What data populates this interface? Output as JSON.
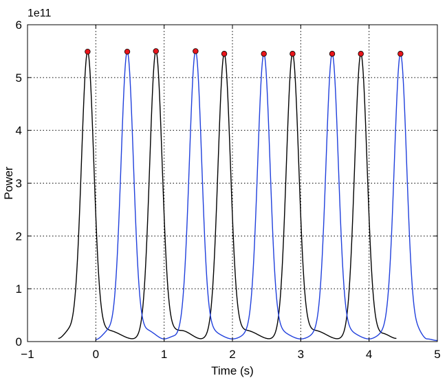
{
  "chart_data": {
    "type": "line",
    "title": "",
    "xlabel": "Time (s)",
    "ylabel": "Power",
    "y_exponent_label": "1e11",
    "xlim": [
      -1,
      5
    ],
    "ylim": [
      0,
      600000000000.0
    ],
    "x_ticks": [
      -1,
      0,
      1,
      2,
      3,
      4,
      5
    ],
    "x_tick_labels": [
      "−1",
      "0",
      "1",
      "2",
      "3",
      "4",
      "5"
    ],
    "y_ticks": [
      0,
      100000000000.0,
      200000000000.0,
      300000000000.0,
      400000000000.0,
      500000000000.0,
      600000000000.0
    ],
    "y_tick_labels": [
      "0",
      "1",
      "2",
      "3",
      "4",
      "5",
      "6"
    ],
    "grid": true,
    "grid_style": "dotted",
    "pulse_width_s": 0.09,
    "series": [
      {
        "color": "#000000",
        "x_range": [
          -0.55,
          4.4
        ],
        "baseline": [
          {
            "x": -0.55,
            "y": 6000000000.0
          },
          {
            "x": -0.38,
            "y": 21000000000.0
          },
          {
            "x": 0.18,
            "y": 21000000000.0
          },
          {
            "x": 0.55,
            "y": 5000000000.0
          },
          {
            "x": 0.95,
            "y": 22000000000.0
          },
          {
            "x": 1.25,
            "y": 21000000000.0
          },
          {
            "x": 1.55,
            "y": 5000000000.0
          },
          {
            "x": 1.95,
            "y": 22000000000.0
          },
          {
            "x": 2.2,
            "y": 21000000000.0
          },
          {
            "x": 2.55,
            "y": 5000000000.0
          },
          {
            "x": 2.95,
            "y": 22000000000.0
          },
          {
            "x": 3.2,
            "y": 21000000000.0
          },
          {
            "x": 3.55,
            "y": 5000000000.0
          },
          {
            "x": 3.95,
            "y": 22000000000.0
          },
          {
            "x": 4.2,
            "y": 15000000000.0
          },
          {
            "x": 4.4,
            "y": 6000000000.0
          }
        ],
        "peaks": [
          {
            "x": -0.12,
            "y": 549000000000.0
          },
          {
            "x": 0.88,
            "y": 550000000000.0
          },
          {
            "x": 1.88,
            "y": 545000000000.0
          },
          {
            "x": 2.88,
            "y": 545000000000.0
          },
          {
            "x": 3.88,
            "y": 545000000000.0
          }
        ]
      },
      {
        "color": "#1f3fdc",
        "x_range": [
          0.0,
          5.0
        ],
        "baseline": [
          {
            "x": 0.0,
            "y": 4000000000.0
          },
          {
            "x": 0.2,
            "y": 21000000000.0
          },
          {
            "x": 0.75,
            "y": 21000000000.0
          },
          {
            "x": 1.0,
            "y": 5000000000.0
          },
          {
            "x": 1.15,
            "y": 10000000000.0
          },
          {
            "x": 1.35,
            "y": 21000000000.0
          },
          {
            "x": 1.65,
            "y": 21000000000.0
          },
          {
            "x": 2.0,
            "y": 5000000000.0
          },
          {
            "x": 2.35,
            "y": 21000000000.0
          },
          {
            "x": 2.65,
            "y": 21000000000.0
          },
          {
            "x": 3.0,
            "y": 5000000000.0
          },
          {
            "x": 3.35,
            "y": 21000000000.0
          },
          {
            "x": 3.65,
            "y": 21000000000.0
          },
          {
            "x": 4.0,
            "y": 5000000000.0
          },
          {
            "x": 4.3,
            "y": 21000000000.0
          },
          {
            "x": 4.7,
            "y": 21000000000.0
          },
          {
            "x": 4.85,
            "y": 5000000000.0
          },
          {
            "x": 5.0,
            "y": 2000000000.0
          }
        ],
        "peaks": [
          {
            "x": 0.46,
            "y": 549000000000.0
          },
          {
            "x": 1.46,
            "y": 550000000000.0
          },
          {
            "x": 2.46,
            "y": 545000000000.0
          },
          {
            "x": 3.46,
            "y": 545000000000.0
          },
          {
            "x": 4.46,
            "y": 545000000000.0
          }
        ]
      }
    ],
    "markers": {
      "color": "#e8151b",
      "edge_color": "#000000",
      "points": [
        {
          "x": -0.12,
          "y": 549000000000.0
        },
        {
          "x": 0.46,
          "y": 549000000000.0
        },
        {
          "x": 0.88,
          "y": 550000000000.0
        },
        {
          "x": 1.46,
          "y": 550000000000.0
        },
        {
          "x": 1.88,
          "y": 545000000000.0
        },
        {
          "x": 2.46,
          "y": 545000000000.0
        },
        {
          "x": 2.88,
          "y": 545000000000.0
        },
        {
          "x": 3.46,
          "y": 545000000000.0
        },
        {
          "x": 3.88,
          "y": 545000000000.0
        },
        {
          "x": 4.46,
          "y": 545000000000.0
        }
      ]
    }
  }
}
